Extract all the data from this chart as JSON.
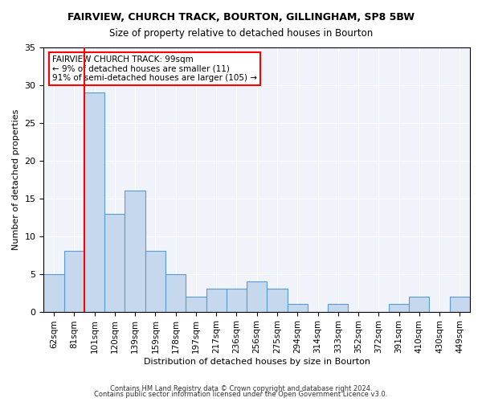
{
  "title1": "FAIRVIEW, CHURCH TRACK, BOURTON, GILLINGHAM, SP8 5BW",
  "title2": "Size of property relative to detached houses in Bourton",
  "xlabel": "Distribution of detached houses by size in Bourton",
  "ylabel": "Number of detached properties",
  "categories": [
    "62sqm",
    "81sqm",
    "101sqm",
    "120sqm",
    "139sqm",
    "159sqm",
    "178sqm",
    "197sqm",
    "217sqm",
    "236sqm",
    "256sqm",
    "275sqm",
    "294sqm",
    "314sqm",
    "333sqm",
    "352sqm",
    "372sqm",
    "391sqm",
    "410sqm",
    "430sqm",
    "449sqm"
  ],
  "values": [
    5,
    8,
    29,
    13,
    16,
    8,
    5,
    2,
    3,
    3,
    4,
    3,
    1,
    0,
    1,
    0,
    0,
    1,
    2,
    0,
    2
  ],
  "bar_color": "#c5d8ed",
  "bar_edge_color": "#5b9bd5",
  "red_line_x": 2,
  "annotation_title": "FAIRVIEW CHURCH TRACK: 99sqm",
  "annotation_line1": "← 9% of detached houses are smaller (11)",
  "annotation_line2": "91% of semi-detached houses are larger (105) →",
  "ylim": [
    0,
    35
  ],
  "yticks": [
    0,
    5,
    10,
    15,
    20,
    25,
    30,
    35
  ],
  "footer1": "Contains HM Land Registry data © Crown copyright and database right 2024.",
  "footer2": "Contains public sector information licensed under the Open Government Licence v3.0.",
  "bg_color": "#f0f4fa"
}
